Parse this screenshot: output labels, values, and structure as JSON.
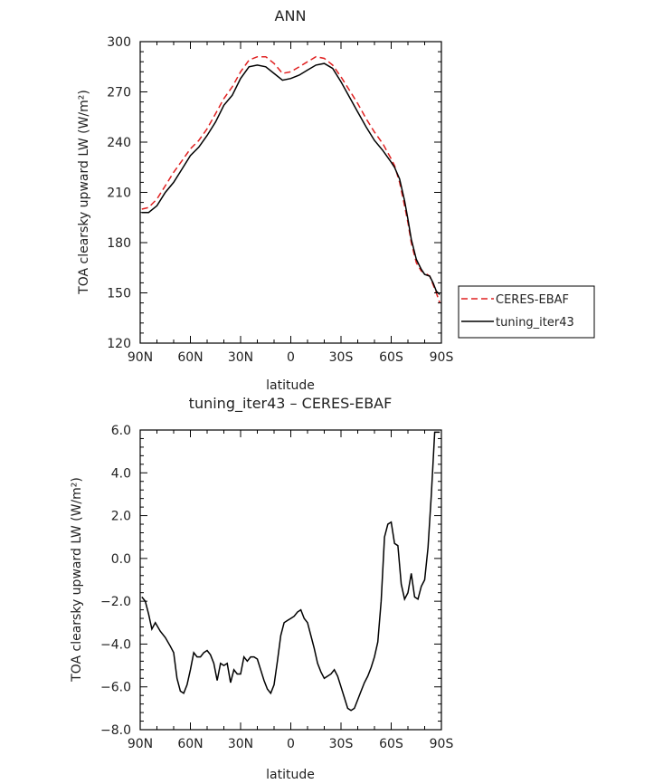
{
  "chart_data": [
    {
      "type": "line",
      "title": "ANN",
      "xlabel": "latitude",
      "ylabel": "TOA clearsky upward LW (W/m²)",
      "xlim": [
        90,
        -90
      ],
      "ylim": [
        120,
        300
      ],
      "x_ticks": [
        90,
        60,
        30,
        0,
        -30,
        -60,
        -90
      ],
      "x_tick_labels": [
        "90N",
        "60N",
        "30N",
        "0",
        "30S",
        "60S",
        "90S"
      ],
      "y_ticks": [
        120,
        150,
        180,
        210,
        240,
        270,
        300
      ],
      "y_tick_labels": [
        "120",
        "150",
        "180",
        "210",
        "240",
        "270",
        "300"
      ],
      "legend": {
        "placement": "right",
        "entries": [
          {
            "label": "CERES-EBAF",
            "color": "#e02020",
            "dash": "dashed"
          },
          {
            "label": "tuning_iter43",
            "color": "#000000",
            "dash": "solid"
          }
        ]
      },
      "series": [
        {
          "name": "CERES-EBAF",
          "color": "#e02020",
          "style": "dashed",
          "x": [
            89,
            85,
            80,
            75,
            70,
            65,
            60,
            55,
            50,
            45,
            40,
            35,
            30,
            25,
            20,
            15,
            10,
            5,
            0,
            -5,
            -10,
            -15,
            -20,
            -25,
            -30,
            -35,
            -40,
            -45,
            -50,
            -55,
            -60,
            -62,
            -65,
            -68,
            -70,
            -72,
            -75,
            -78,
            -80,
            -83,
            -85,
            -87,
            -89
          ],
          "y": [
            200,
            201,
            206,
            214,
            222,
            229,
            236,
            241,
            248,
            257,
            266,
            273,
            282,
            289,
            291,
            291,
            287,
            281,
            282,
            285,
            288,
            291,
            290,
            286,
            279,
            271,
            263,
            254,
            246,
            239,
            230,
            226,
            216,
            202,
            192,
            180,
            168,
            163,
            162,
            160,
            155,
            150,
            144
          ]
        },
        {
          "name": "tuning_iter43",
          "color": "#000000",
          "style": "solid",
          "x": [
            89,
            85,
            80,
            75,
            70,
            65,
            60,
            55,
            50,
            45,
            40,
            35,
            30,
            25,
            20,
            15,
            10,
            5,
            0,
            -5,
            -10,
            -15,
            -20,
            -25,
            -30,
            -35,
            -40,
            -45,
            -50,
            -55,
            -60,
            -62,
            -65,
            -68,
            -70,
            -72,
            -75,
            -78,
            -80,
            -83,
            -85,
            -87,
            -89
          ],
          "y": [
            198,
            198,
            202,
            210,
            216,
            224,
            232,
            237,
            244,
            252,
            262,
            268,
            278,
            285,
            286,
            285,
            281,
            277,
            278,
            280,
            283,
            286,
            287,
            284,
            276,
            267,
            258,
            249,
            241,
            235,
            228,
            225,
            218,
            205,
            194,
            182,
            170,
            164,
            161,
            160,
            156,
            151,
            149
          ]
        }
      ]
    },
    {
      "type": "line",
      "title": "tuning_iter43 – CERES-EBAF",
      "xlabel": "latitude",
      "ylabel": "TOA clearsky upward LW (W/m²)",
      "xlim": [
        90,
        -90
      ],
      "ylim": [
        -8,
        6
      ],
      "x_ticks": [
        90,
        60,
        30,
        0,
        -30,
        -60,
        -90
      ],
      "x_tick_labels": [
        "90N",
        "60N",
        "30N",
        "0",
        "30S",
        "60S",
        "90S"
      ],
      "y_ticks": [
        -8,
        -6,
        -4,
        -2,
        0,
        2,
        4,
        6
      ],
      "y_tick_labels": [
        "−8.0",
        "−6.0",
        "−4.0",
        "−2.0",
        "0.0",
        "2.0",
        "4.0",
        "6.0"
      ],
      "series": [
        {
          "color": "#000000",
          "style": "solid",
          "x": [
            89,
            87,
            85,
            83,
            81,
            78,
            75,
            72,
            70,
            68,
            66,
            64,
            62,
            60,
            58,
            56,
            54,
            52,
            50,
            48,
            46,
            44,
            42,
            40,
            38,
            36,
            34,
            32,
            30,
            28,
            26,
            24,
            22,
            20,
            18,
            16,
            14,
            12,
            10,
            8,
            6,
            4,
            2,
            0,
            -2,
            -4,
            -6,
            -8,
            -10,
            -12,
            -14,
            -16,
            -18,
            -20,
            -22,
            -24,
            -26,
            -28,
            -30,
            -32,
            -34,
            -36,
            -38,
            -40,
            -42,
            -44,
            -46,
            -48,
            -50,
            -52,
            -54,
            -56,
            -58,
            -60,
            -62,
            -64,
            -66,
            -68,
            -70,
            -72,
            -74,
            -76,
            -78,
            -80,
            -82,
            -84,
            -86,
            -88,
            -89
          ],
          "y": [
            -1.8,
            -2.0,
            -2.6,
            -3.3,
            -3.0,
            -3.4,
            -3.7,
            -4.1,
            -4.4,
            -5.6,
            -6.2,
            -6.3,
            -5.9,
            -5.2,
            -4.4,
            -4.6,
            -4.6,
            -4.4,
            -4.3,
            -4.5,
            -4.9,
            -5.7,
            -4.9,
            -5.0,
            -4.9,
            -5.8,
            -5.2,
            -5.4,
            -5.4,
            -4.6,
            -4.8,
            -4.6,
            -4.6,
            -4.7,
            -5.2,
            -5.7,
            -6.1,
            -6.3,
            -5.9,
            -4.8,
            -3.6,
            -3.0,
            -2.9,
            -2.8,
            -2.7,
            -2.5,
            -2.4,
            -2.8,
            -3.0,
            -3.6,
            -4.2,
            -4.9,
            -5.3,
            -5.6,
            -5.5,
            -5.4,
            -5.2,
            -5.5,
            -6.0,
            -6.5,
            -7.0,
            -7.1,
            -7.0,
            -6.6,
            -6.2,
            -5.8,
            -5.5,
            -5.1,
            -4.6,
            -3.9,
            -2.0,
            1.0,
            1.6,
            1.7,
            0.7,
            0.6,
            -1.2,
            -1.9,
            -1.6,
            -0.7,
            -1.8,
            -1.9,
            -1.3,
            -1.0,
            0.5,
            3.0,
            5.9,
            5.9,
            5.9
          ]
        }
      ]
    }
  ]
}
